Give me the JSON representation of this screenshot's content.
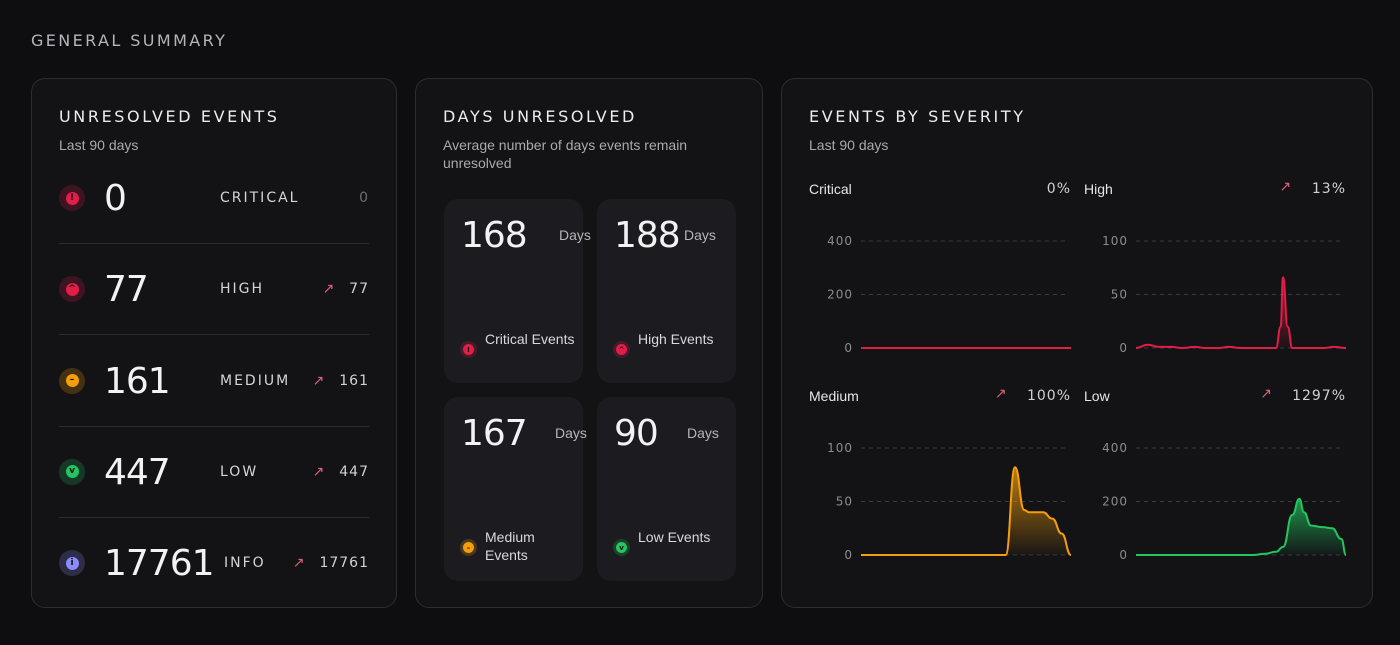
{
  "page": {
    "title": "GENERAL SUMMARY"
  },
  "unresolved": {
    "title": "UNRESOLVED EVENTS",
    "subtitle": "Last 90 days",
    "rows": [
      {
        "count": "0",
        "label": "CRITICAL",
        "trend": "0",
        "trend_up": false,
        "color": "#e11d48",
        "glyph": "!"
      },
      {
        "count": "77",
        "label": "HIGH",
        "trend": "77",
        "trend_up": true,
        "color": "#e11d48",
        "glyph": "^"
      },
      {
        "count": "161",
        "label": "MEDIUM",
        "trend": "161",
        "trend_up": true,
        "color": "#f59e0b",
        "glyph": "–"
      },
      {
        "count": "447",
        "label": "LOW",
        "trend": "447",
        "trend_up": true,
        "color": "#22c55e",
        "glyph": "v"
      },
      {
        "count": "17761",
        "label": "INFO",
        "trend": "17761",
        "trend_up": true,
        "color": "#8b8cf8",
        "glyph": "i"
      }
    ]
  },
  "days": {
    "title": "DAYS UNRESOLVED",
    "subtitle": "Average number of days events remain unresolved",
    "tiles": [
      {
        "value": "168",
        "unit": "Days",
        "label": "Critical Events",
        "color": "#e11d48",
        "glyph": "!"
      },
      {
        "value": "188",
        "unit": "Days",
        "label": "High Events",
        "color": "#e11d48",
        "glyph": "^"
      },
      {
        "value": "167",
        "unit": "Days",
        "label": "Medium Events",
        "color": "#f59e0b",
        "glyph": "–"
      },
      {
        "value": "90",
        "unit": "Days",
        "label": "Low Events",
        "color": "#22c55e",
        "glyph": "v"
      }
    ]
  },
  "severity": {
    "title": "EVENTS BY SEVERITY",
    "subtitle": "Last 90 days"
  },
  "chart_data": [
    {
      "type": "area",
      "title": "Critical",
      "change": "0%",
      "trend_up": false,
      "color": "#e11d48",
      "yticks": [
        0,
        200,
        400
      ],
      "ylim": [
        0,
        400
      ],
      "x": [
        0,
        5,
        10,
        15,
        20,
        25,
        30,
        35,
        40,
        45,
        50,
        55,
        60,
        65,
        70,
        75,
        80,
        85,
        90
      ],
      "values": [
        0,
        0,
        0,
        0,
        0,
        0,
        0,
        0,
        0,
        0,
        0,
        0,
        0,
        0,
        0,
        0,
        0,
        0,
        0
      ]
    },
    {
      "type": "area",
      "title": "High",
      "change": "13%",
      "trend_up": true,
      "color": "#e11d48",
      "yticks": [
        0,
        50,
        100
      ],
      "ylim": [
        0,
        100
      ],
      "x": [
        0,
        5,
        10,
        15,
        20,
        25,
        30,
        35,
        40,
        45,
        50,
        55,
        60,
        62,
        63,
        65,
        67,
        70,
        75,
        80,
        85,
        90
      ],
      "values": [
        0,
        3,
        1,
        1,
        0,
        1,
        0,
        0,
        1,
        0,
        0,
        0,
        0,
        20,
        66,
        20,
        0,
        0,
        0,
        0,
        1,
        0
      ]
    },
    {
      "type": "area",
      "title": "Medium",
      "change": "100%",
      "trend_up": true,
      "color": "#f59e0b",
      "yticks": [
        0,
        50,
        100
      ],
      "ylim": [
        0,
        100
      ],
      "x": [
        0,
        10,
        20,
        30,
        40,
        50,
        60,
        62,
        66,
        70,
        72,
        78,
        82,
        86,
        90
      ],
      "values": [
        0,
        0,
        0,
        0,
        0,
        0,
        0,
        0,
        82,
        42,
        40,
        40,
        34,
        20,
        0
      ]
    },
    {
      "type": "area",
      "title": "Low",
      "change": "1297%",
      "trend_up": true,
      "color": "#22c55e",
      "yticks": [
        0,
        200,
        400
      ],
      "ylim": [
        0,
        400
      ],
      "x": [
        0,
        10,
        20,
        30,
        40,
        50,
        55,
        60,
        63,
        67,
        70,
        72,
        75,
        80,
        84,
        88,
        90
      ],
      "values": [
        0,
        0,
        0,
        0,
        0,
        0,
        4,
        12,
        30,
        150,
        210,
        160,
        110,
        104,
        100,
        60,
        0
      ]
    }
  ]
}
